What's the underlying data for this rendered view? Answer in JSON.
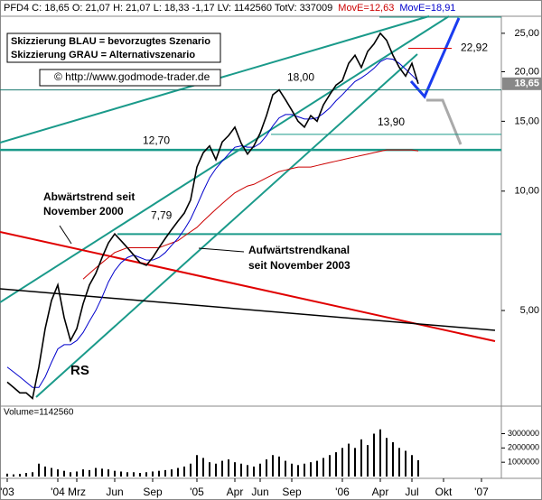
{
  "chart_data": {
    "type": "line",
    "header": "PFD4 C: 18,65 O: 21,07 H: 21,07 L: 18,33 -1,17 LV: 1142560 TotV: 337009",
    "header_move_red": "MovE=12,63",
    "header_move_blue": "MovE=18,91",
    "scenario_blue": "Skizzierung BLAU = bevorzugtes Szenario",
    "scenario_gray": "Skizzierung GRAU = Alternativszenario",
    "copyright": "©  http://www.godmode-trader.de",
    "annotations": [
      "Abwärtstrend seit",
      "November 2000",
      "Aufwärtstrendkanal",
      "seit November 2003",
      "RS"
    ],
    "categories": [
      "'03",
      null,
      null,
      null,
      null,
      null,
      null,
      null,
      "'04",
      null,
      null,
      "Mrz",
      null,
      null,
      null,
      null,
      null,
      "Jun",
      null,
      null,
      null,
      null,
      null,
      "Sep",
      null,
      null,
      null,
      null,
      null,
      null,
      "'05",
      null,
      null,
      null,
      null,
      null,
      "Apr",
      null,
      null,
      null,
      "Jun",
      null,
      null,
      null,
      null,
      "Sep",
      null,
      null,
      null,
      null,
      null,
      null,
      null,
      "'06",
      null,
      null,
      null,
      null,
      null,
      "Apr",
      null,
      null,
      null,
      null,
      "Jul",
      null,
      null,
      null,
      null,
      "Okt",
      null,
      null,
      null,
      null,
      null,
      "'07"
    ],
    "series": [
      {
        "name": "PFD4",
        "color": "#000000",
        "values": [
          3.3,
          3.2,
          3.1,
          3.1,
          3.0,
          3.6,
          4.5,
          5.3,
          5.8,
          4.8,
          4.2,
          4.5,
          5.2,
          5.8,
          6.2,
          6.8,
          7.4,
          7.8,
          7.5,
          7.2,
          6.9,
          6.6,
          6.5,
          6.8,
          7.2,
          7.6,
          8.0,
          8.4,
          8.8,
          9.5,
          11.5,
          12.5,
          13.0,
          12.0,
          13.3,
          13.8,
          14.5,
          13.2,
          12.4,
          13.0,
          14.0,
          15.5,
          17.5,
          18.0,
          17.0,
          16.0,
          15.0,
          14.5,
          15.5,
          15.0,
          16.5,
          17.5,
          18.5,
          19.0,
          21.0,
          22.0,
          20.5,
          22.5,
          23.5,
          25.0,
          24.0,
          22.0,
          20.5,
          19.5,
          21.0,
          18.65,
          null,
          null,
          null,
          null,
          null,
          null,
          null,
          null,
          null,
          null
        ]
      },
      {
        "name": "MovE=18,91",
        "color": "#0000cc",
        "values": [
          3.6,
          3.5,
          3.4,
          3.3,
          3.2,
          3.2,
          3.4,
          3.7,
          4.0,
          4.1,
          4.1,
          4.2,
          4.4,
          4.7,
          5.0,
          5.4,
          5.9,
          6.3,
          6.6,
          6.8,
          6.9,
          6.8,
          6.7,
          6.7,
          6.8,
          7.0,
          7.3,
          7.6,
          8.0,
          8.5,
          9.2,
          10.0,
          10.8,
          11.4,
          11.9,
          12.4,
          12.9,
          13.0,
          12.9,
          12.9,
          13.2,
          13.8,
          14.6,
          15.3,
          15.6,
          15.6,
          15.4,
          15.2,
          15.2,
          15.3,
          15.7,
          16.2,
          16.9,
          17.5,
          18.2,
          18.9,
          19.3,
          19.8,
          20.4,
          21.2,
          21.6,
          21.5,
          21.0,
          20.3,
          19.6,
          18.91,
          null,
          null,
          null,
          null,
          null,
          null,
          null,
          null,
          null,
          null
        ]
      },
      {
        "name": "MovE=12,63",
        "color": "#cc0000",
        "values": [
          null,
          null,
          null,
          null,
          null,
          null,
          null,
          null,
          null,
          null,
          null,
          null,
          6.0,
          6.2,
          6.4,
          6.6,
          6.8,
          7.0,
          7.1,
          7.2,
          7.2,
          7.2,
          7.2,
          7.2,
          7.2,
          7.3,
          7.4,
          7.5,
          7.7,
          7.9,
          8.1,
          8.4,
          8.7,
          9.0,
          9.3,
          9.6,
          9.9,
          10.1,
          10.3,
          10.4,
          10.6,
          10.8,
          11.0,
          11.2,
          11.3,
          11.4,
          11.5,
          11.5,
          11.5,
          11.6,
          11.7,
          11.8,
          11.9,
          12.0,
          12.1,
          12.2,
          12.3,
          12.4,
          12.5,
          12.6,
          12.7,
          12.7,
          12.7,
          12.7,
          12.7,
          12.63,
          null,
          null,
          null,
          null,
          null,
          null,
          null,
          null,
          null,
          null
        ]
      }
    ],
    "log_scale": true,
    "ylim": [
      2.9,
      27.6
    ],
    "yticks": [
      {
        "value": 5,
        "label": "5,00"
      },
      {
        "value": 10,
        "label": "10,00"
      },
      {
        "value": 15,
        "label": "15,00"
      },
      {
        "value": 20,
        "label": "20,00"
      },
      {
        "value": 25,
        "label": "25,00"
      }
    ],
    "last_price": {
      "value": 18.65,
      "label": "18,65"
    },
    "levels": [
      {
        "value": 18.0,
        "label": "18,00"
      },
      {
        "value": 13.9,
        "label": "13,90"
      },
      {
        "value": 12.7,
        "label": "12,70"
      },
      {
        "value": 7.79,
        "label": "7,79"
      },
      {
        "value": 22.92,
        "label": "22,92"
      }
    ],
    "volume": {
      "label": "Volume=1142560",
      "color": "#000000",
      "values": [
        200000,
        150000,
        180000,
        250000,
        300000,
        900000,
        700000,
        600000,
        500000,
        400000,
        300000,
        350000,
        500000,
        450000,
        600000,
        550000,
        500000,
        400000,
        350000,
        300000,
        300000,
        250000,
        300000,
        350000,
        400000,
        450000,
        500000,
        600000,
        700000,
        900000,
        1500000,
        1300000,
        1000000,
        900000,
        1100000,
        1200000,
        1000000,
        900000,
        800000,
        700000,
        900000,
        1200000,
        1500000,
        1400000,
        1100000,
        900000,
        800000,
        900000,
        1000000,
        1100000,
        1300000,
        1500000,
        1700000,
        2000000,
        2300000,
        2000000,
        2600000,
        2200000,
        3000000,
        3300000,
        2700000,
        2400000,
        2000000,
        1800000,
        1500000,
        1142560,
        null,
        null,
        null,
        null,
        null,
        null,
        null,
        null,
        null,
        null
      ],
      "ylim": [
        0,
        4800000
      ],
      "yticks": [
        1000000,
        2000000,
        3000000
      ]
    }
  }
}
